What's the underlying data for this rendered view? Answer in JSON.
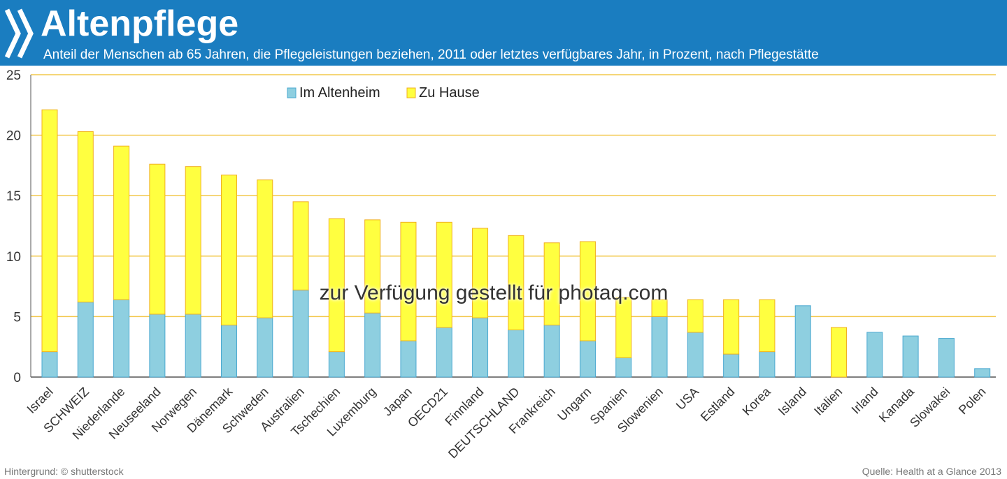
{
  "header": {
    "title": "Altenpflege",
    "subtitle": "Anteil der Menschen ab 65 Jahren, die Pflegeleistungen beziehen, 2011 oder letztes verfügbares Jahr, in Prozent, nach Pflegestätte"
  },
  "footer": {
    "credit": "Hintergrund: © shutterstock",
    "source": "Quelle: Health at a Glance 2013"
  },
  "watermark": "zur Verfügung gestellt für photaq.com",
  "colors": {
    "header_bg": "#1a7dc0",
    "altenheim": "#8ecfe0",
    "altenheim_edge": "#4aa8d0",
    "zuhause": "#ffff40",
    "zuhause_edge": "#f0b020",
    "grid": "#f2c84b"
  },
  "chart_data": {
    "type": "bar",
    "stacked": true,
    "ylim": [
      0,
      25
    ],
    "yticks": [
      0,
      5,
      10,
      15,
      20,
      25
    ],
    "grid": true,
    "legend_position": "top-left",
    "categories": [
      "Israel",
      "SCHWEIZ",
      "Niederlande",
      "Neuseeland",
      "Norwegen",
      "Dänemark",
      "Schweden",
      "Australien",
      "Tschechien",
      "Luxemburg",
      "Japan",
      "OECD21",
      "Finnland",
      "DEUTSCHLAND",
      "Frankreich",
      "Ungarn",
      "Spanien",
      "Slowenien",
      "USA",
      "Estland",
      "Korea",
      "Island",
      "Italien",
      "Irland",
      "Kanada",
      "Slowakei",
      "Polen"
    ],
    "series": [
      {
        "name": "Im Altenheim",
        "values": [
          2.1,
          6.2,
          6.4,
          5.2,
          5.2,
          4.3,
          4.9,
          7.2,
          2.1,
          5.3,
          3.0,
          4.1,
          4.9,
          3.9,
          4.3,
          3.0,
          1.6,
          5.0,
          3.7,
          1.9,
          2.1,
          5.9,
          0.0,
          3.7,
          3.4,
          3.2,
          0.7
        ]
      },
      {
        "name": "Zu Hause",
        "values": [
          20.0,
          14.1,
          12.7,
          12.4,
          12.2,
          12.4,
          11.4,
          7.3,
          11.0,
          7.7,
          9.8,
          8.7,
          7.4,
          7.8,
          6.8,
          8.2,
          5.0,
          1.4,
          2.7,
          4.5,
          4.3,
          0.0,
          4.1,
          0.0,
          0.0,
          0.0,
          0.0
        ]
      }
    ]
  }
}
